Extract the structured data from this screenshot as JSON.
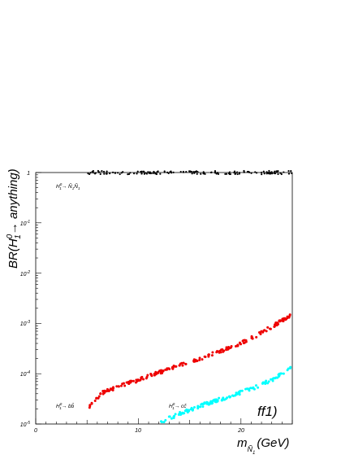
{
  "chart_data": {
    "type": "scatter",
    "xlabel": "m",
    "xlabel_sub": "Ñ",
    "xlabel_sub2": "1",
    "xlabel_unit": "(GeV)",
    "ylabel": "BR(H",
    "ylabel_sup": "0",
    "ylabel_sub": "1",
    "ylabel_rest": "→ anything)",
    "xlim": [
      0,
      25
    ],
    "ylim_log10": [
      -5,
      0
    ],
    "yscale": "log",
    "grid": false,
    "x_ticks": [
      {
        "value": 0,
        "label": "0"
      },
      {
        "value": 10,
        "label": "10"
      },
      {
        "value": 20,
        "label": "20"
      }
    ],
    "y_ticks": [
      {
        "exp": 0,
        "base": "1",
        "sup": ""
      },
      {
        "exp": -1,
        "base": "10",
        "sup": "-1"
      },
      {
        "exp": -2,
        "base": "10",
        "sup": "-2"
      },
      {
        "exp": -3,
        "base": "10",
        "sup": "-3"
      },
      {
        "exp": -4,
        "base": "10",
        "sup": "-4"
      },
      {
        "exp": -5,
        "base": "10",
        "sup": "-5"
      }
    ],
    "series": [
      {
        "channel": "neutralino",
        "color": "#000000",
        "x_range": [
          5,
          25
        ],
        "points": 150,
        "y_at_x": [
          [
            5,
            1.0
          ],
          [
            25,
            1.0
          ]
        ]
      },
      {
        "channel": "bb",
        "color": "#ee0000",
        "x_range": [
          5.2,
          25
        ],
        "points": 210,
        "y_at_x": [
          [
            5.2,
            2.2e-05
          ],
          [
            6.5,
            4.2e-05
          ],
          [
            8,
            5.5e-05
          ],
          [
            10,
            7.5e-05
          ],
          [
            12,
            0.000105
          ],
          [
            14,
            0.00015
          ],
          [
            16,
            0.0002
          ],
          [
            18,
            0.00028
          ],
          [
            20,
            0.0004
          ],
          [
            22,
            0.00065
          ],
          [
            25,
            0.0015
          ]
        ]
      },
      {
        "channel": "cc",
        "color": "#00ffff",
        "x_range": [
          11.8,
          25
        ],
        "points": 140,
        "y_at_x": [
          [
            11.8,
            9.8e-06
          ],
          [
            13,
            1.3e-05
          ],
          [
            15,
            1.9e-05
          ],
          [
            17,
            2.7e-05
          ],
          [
            19,
            3.6e-05
          ],
          [
            21,
            5e-05
          ],
          [
            23,
            7.5e-05
          ],
          [
            25,
            0.00014
          ]
        ]
      }
    ],
    "annotations": [
      {
        "id": "neutralino",
        "parts": [
          "H",
          "0",
          "1",
          "→ ",
          "Ñ",
          "1",
          "Ñ",
          "1"
        ]
      },
      {
        "id": "bb",
        "parts": [
          "H",
          "0",
          "1",
          "→ ",
          "b",
          "b̄"
        ]
      },
      {
        "id": "cc",
        "parts": [
          "H",
          "0",
          "1",
          "→ ",
          "c",
          "c̄"
        ]
      }
    ],
    "tag": "ff1)"
  }
}
